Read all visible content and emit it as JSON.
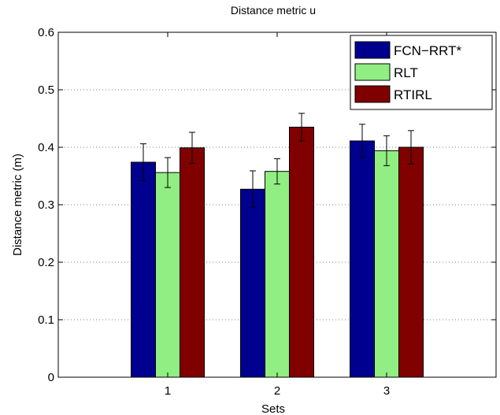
{
  "chart_data": {
    "type": "bar",
    "title": "Distance metric u",
    "xlabel": "Sets",
    "ylabel": "Distance metric (m)",
    "categories": [
      "1",
      "2",
      "3"
    ],
    "ylim": [
      0,
      0.6
    ],
    "yticks": [
      "0",
      "0.1",
      "0.2",
      "0.3",
      "0.4",
      "0.5",
      "0.6"
    ],
    "grid": true,
    "legend_position": "top-right",
    "series": [
      {
        "name": "FCN−RRT*",
        "color": "#00008f",
        "values": [
          0.374,
          0.327,
          0.411
        ],
        "errors": [
          0.032,
          0.032,
          0.029
        ]
      },
      {
        "name": "RLT",
        "color": "#90ee82",
        "values": [
          0.356,
          0.358,
          0.394
        ],
        "errors": [
          0.026,
          0.022,
          0.026
        ]
      },
      {
        "name": "RTIRL",
        "color": "#800000",
        "values": [
          0.399,
          0.435,
          0.4
        ],
        "errors": [
          0.027,
          0.024,
          0.029
        ]
      }
    ]
  }
}
